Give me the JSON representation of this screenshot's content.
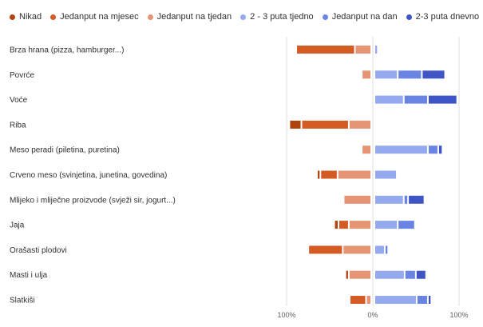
{
  "chart_data": {
    "type": "bar",
    "orientation": "horizontal",
    "stacked": "diverging",
    "legend_position": "top",
    "categories": [
      "Brza hrana (pizza, hamburger...)",
      "Povrće",
      "Voće",
      "Riba",
      "Meso peradi (piletina, puretina)",
      "Crveno meso (svinjetina, junetina, govedina)",
      "Mlijeko i mliječne proizvode (svježi sir, jogurt...)",
      "Jaja",
      "Orašasti plodovi",
      "Masti i ulja",
      "Slatkiši"
    ],
    "series": [
      {
        "name": "Nikad",
        "color": "#b1430f",
        "side": "negative",
        "values": [
          0,
          0,
          0,
          14,
          0,
          4,
          0,
          5,
          0,
          4,
          0
        ]
      },
      {
        "name": "Jedanput na mjesec",
        "color": "#d55b25",
        "side": "negative",
        "values": [
          68,
          0,
          0,
          55,
          0,
          20,
          0,
          12,
          40,
          0,
          19
        ]
      },
      {
        "name": "Jedanput na tjedan",
        "color": "#e59474",
        "side": "negative",
        "values": [
          19,
          11,
          0,
          26,
          11,
          39,
          32,
          26,
          33,
          26,
          6
        ]
      },
      {
        "name": "2 - 3 puta tjedno",
        "color": "#94a9ee",
        "side": "positive",
        "values": [
          4,
          27,
          34,
          0,
          62,
          26,
          34,
          27,
          12,
          35,
          49
        ]
      },
      {
        "name": "Jedanput na dan",
        "color": "#6a84e3",
        "side": "positive",
        "values": [
          0,
          28,
          28,
          0,
          12,
          0,
          5,
          20,
          4,
          13,
          13
        ]
      },
      {
        "name": "2-3 puta dnevno",
        "color": "#3f55c6",
        "side": "positive",
        "values": [
          0,
          27,
          34,
          0,
          5,
          0,
          19,
          0,
          0,
          12,
          4
        ]
      }
    ],
    "x_ticks": [
      "100%",
      "0%",
      "100%"
    ],
    "xlim": [
      -100,
      100
    ],
    "grid": true
  }
}
